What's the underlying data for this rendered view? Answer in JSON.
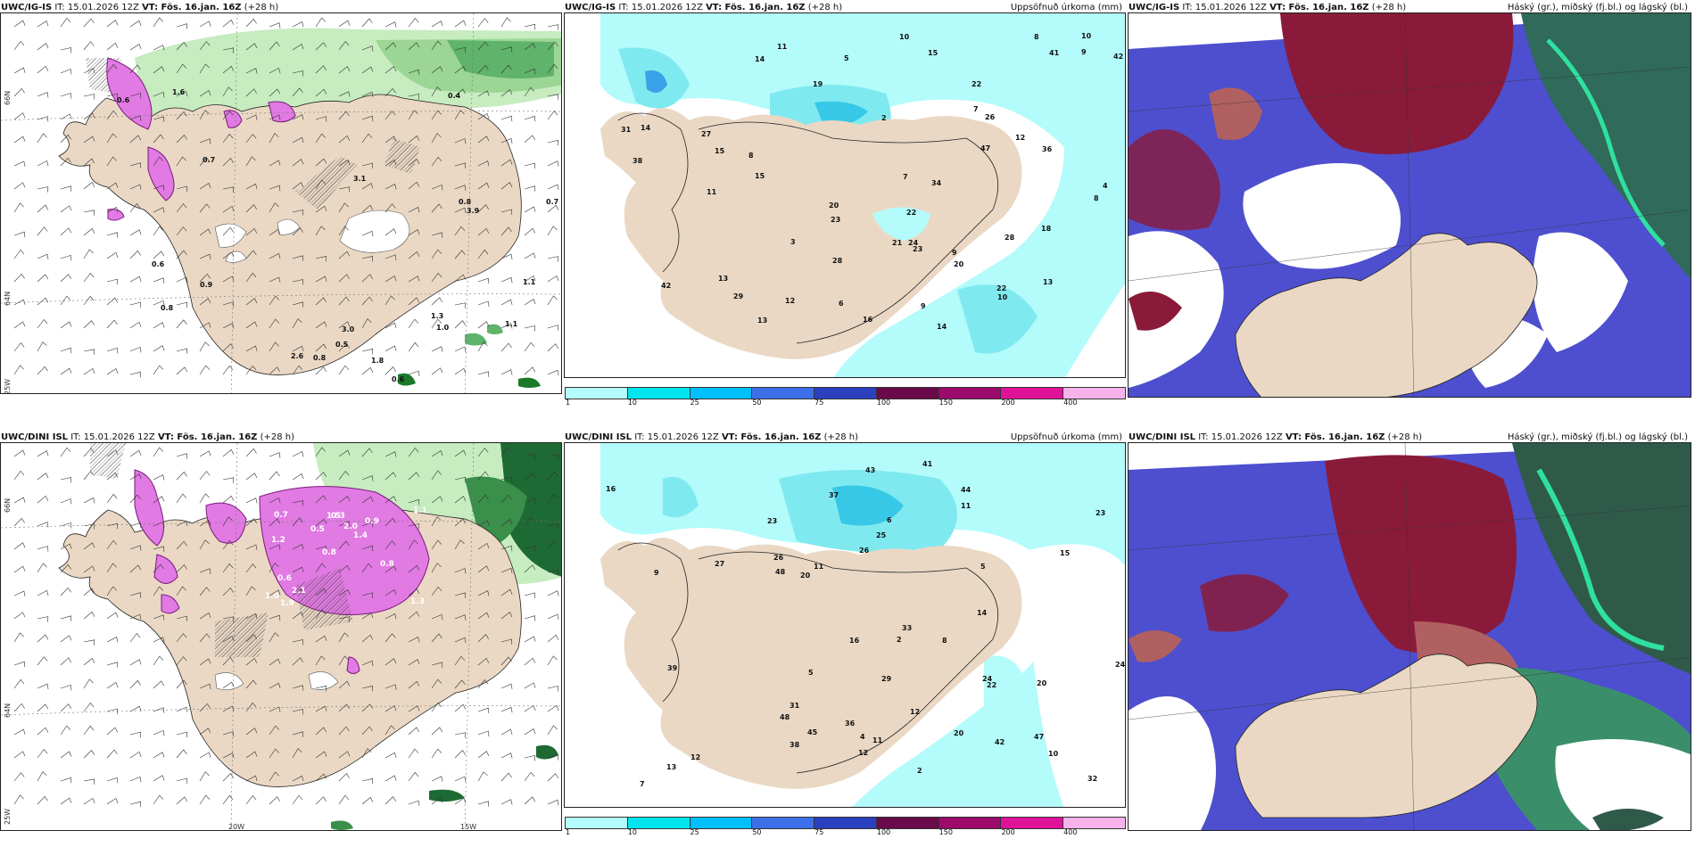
{
  "panels": [
    {
      "model": "UWC/IG-IS",
      "init": "IT: 15.01.2026 12Z",
      "valid": "VT: Fös. 16.jan. 16Z",
      "lead": "(+28 h)",
      "right": ""
    },
    {
      "model": "UWC/IG-IS",
      "init": "IT: 15.01.2026 12Z",
      "valid": "VT: Fös. 16.jan. 16Z",
      "lead": "(+28 h)",
      "right": "Uppsöfnuð úrkoma (mm)"
    },
    {
      "model": "UWC/IG-IS",
      "init": "IT: 15.01.2026 12Z",
      "valid": "VT: Fös. 16.jan. 16Z",
      "lead": "(+28 h)",
      "right": "Háský (gr.), miðský (fj.bl.) og lágský (bl.)"
    },
    {
      "model": "UWC/DINI ISL",
      "init": "IT: 15.01.2026 12Z",
      "valid": "VT: Fös. 16.jan. 16Z",
      "lead": "(+28 h)",
      "right": ""
    },
    {
      "model": "UWC/DINI ISL",
      "init": "IT: 15.01.2026 12Z",
      "valid": "VT: Fös. 16.jan. 16Z",
      "lead": "(+28 h)",
      "right": "Uppsöfnuð úrkoma (mm)"
    },
    {
      "model": "UWC/DINI ISL",
      "init": "IT: 15.01.2026 12Z",
      "valid": "VT: Fös. 16.jan. 16Z",
      "lead": "(+28 h)",
      "right": "Háský (gr.), miðský (fj.bl.) og lágský (bl.)"
    }
  ],
  "axes": {
    "lon_20": "20W",
    "lon_15": "15W",
    "lat_66": "66N",
    "lat_64": "64N",
    "lon_25": "25W"
  },
  "colorbar": {
    "ticks": [
      "1",
      "10",
      "25",
      "50",
      "75",
      "100",
      "150",
      "200",
      "400"
    ],
    "colors": [
      "#b4fbfb",
      "#00e5ee",
      "#00bfff",
      "#3d6fe8",
      "#2b3fbf",
      "#6b0a4a",
      "#9c0a6c",
      "#e0129a",
      "#f7b2ec"
    ]
  },
  "precip_top": [
    "14",
    "14",
    "13",
    "27",
    "12",
    "9",
    "8",
    "15",
    "23",
    "29",
    "42",
    "31",
    "20",
    "24",
    "47",
    "8",
    "38",
    "41",
    "28",
    "36",
    "22",
    "23",
    "13",
    "10",
    "34",
    "26",
    "11",
    "15",
    "16",
    "19",
    "20",
    "10",
    "22",
    "12",
    "11",
    "6",
    "10",
    "14",
    "4",
    "9",
    "5",
    "7",
    "42",
    "13",
    "15",
    "18",
    "21",
    "28",
    "22",
    "9",
    "3",
    "2",
    "8",
    "7"
  ],
  "precip_bot": [
    "13",
    "20",
    "33",
    "29",
    "37",
    "41",
    "47",
    "44",
    "42",
    "48",
    "32",
    "48",
    "45",
    "43",
    "20",
    "26",
    "24",
    "39",
    "16",
    "23",
    "16",
    "12",
    "12",
    "8",
    "22",
    "11",
    "11",
    "25",
    "15",
    "12",
    "10",
    "5",
    "6",
    "7",
    "2",
    "2",
    "4",
    "5",
    "9",
    "36",
    "27",
    "31",
    "23",
    "38",
    "14",
    "20",
    "26",
    "11",
    "24"
  ],
  "snow_top": [
    "2.6",
    "3.0",
    "3.1",
    "0.6",
    "0.7",
    "0.8",
    "0.5",
    "0.6",
    "0.8",
    "0.7",
    "0.9",
    "1.1",
    "0.8",
    "0.6",
    "0.4",
    "1.8",
    "1.3",
    "1.0",
    "1.1",
    "3.9",
    "1.6"
  ],
  "snow_bot": [
    "1.3",
    "1.2",
    "1.1",
    "0.8",
    "0.9",
    "1.9",
    "1.5",
    "2.0",
    "0.6",
    "0.5",
    "1.0",
    "2.1",
    "0.3",
    "1.4",
    "0.8",
    "0.7"
  ],
  "legend_title_cloud": "Háský (gr.), miðský (fj.bl.) og lágský (bl.)"
}
